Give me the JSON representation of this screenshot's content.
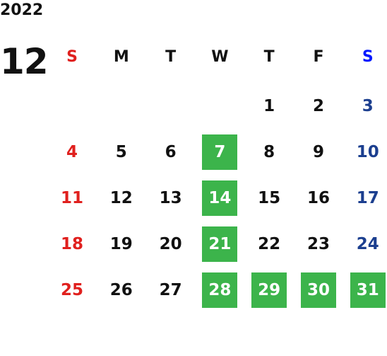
{
  "year": "2022",
  "month": "12",
  "weekdays": [
    "S",
    "M",
    "T",
    "W",
    "T",
    "F",
    "S"
  ],
  "weeks": [
    [
      null,
      null,
      null,
      null,
      1,
      2,
      3
    ],
    [
      4,
      5,
      6,
      7,
      8,
      9,
      10
    ],
    [
      11,
      12,
      13,
      14,
      15,
      16,
      17
    ],
    [
      18,
      19,
      20,
      21,
      22,
      23,
      24
    ],
    [
      25,
      26,
      27,
      28,
      29,
      30,
      31
    ]
  ],
  "highlighted": [
    7,
    14,
    21,
    28,
    29,
    30,
    31
  ]
}
